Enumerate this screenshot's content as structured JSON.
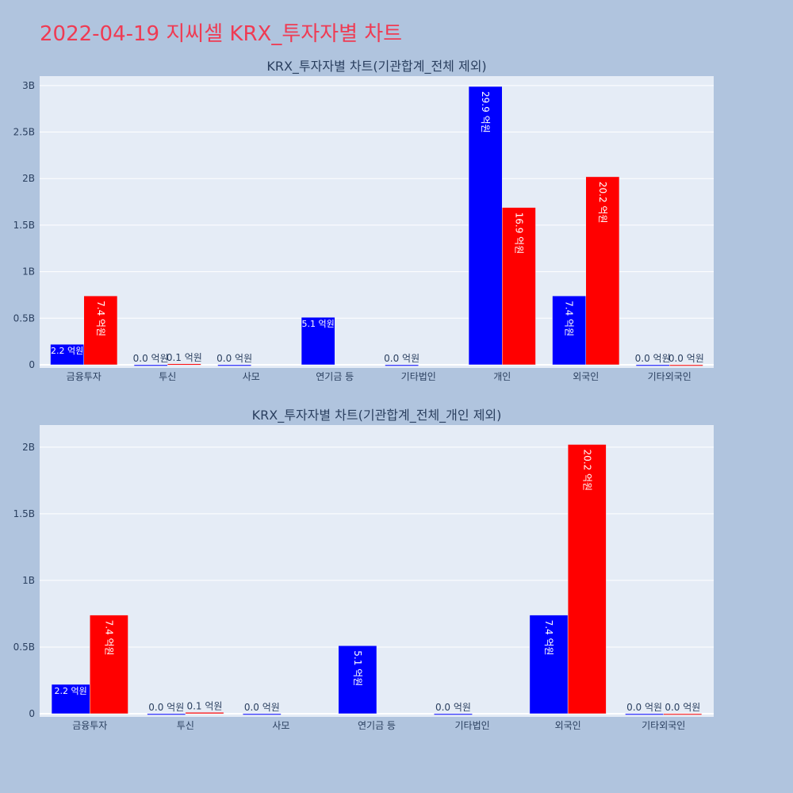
{
  "page": {
    "title": "2022-04-19 지씨셀 KRX_투자자별 차트",
    "title_color": "#ef3b53",
    "background": "#b0c4de",
    "plot_background": "#e5ecf6"
  },
  "chart_data": [
    {
      "type": "bar",
      "title": "KRX_투자자별 차트(기관합계_전체 제외)",
      "categories": [
        "금융투자",
        "투신",
        "사모",
        "연기금 등",
        "기타법인",
        "개인",
        "외국인",
        "기타외국인"
      ],
      "ylim": [
        0,
        3.05
      ],
      "yticks": [
        0,
        0.5,
        1,
        1.5,
        2,
        2.5,
        3
      ],
      "ytick_labels": [
        "0",
        "0.5B",
        "1B",
        "1.5B",
        "2B",
        "2.5B",
        "3B"
      ],
      "grid": true,
      "legend": "none",
      "series": [
        {
          "color": "#0000ff",
          "values": [
            0.22,
            0.0,
            0.0,
            0.51,
            0.0,
            2.99,
            0.74,
            0.0
          ],
          "labels": [
            "2.2 억원",
            "0.0 억원",
            "0.0 억원",
            "5.1 억원",
            "0.0 억원",
            "29.9 억원",
            "7.4 억원",
            "0.0 억원"
          ]
        },
        {
          "color": "#ff0000",
          "values": [
            0.74,
            0.01,
            null,
            null,
            null,
            1.69,
            2.02,
            0.0
          ],
          "labels": [
            "7.4 억원",
            "0.1 억원",
            null,
            null,
            null,
            "16.9 억원",
            "20.2 억원",
            "0.0 억원"
          ]
        }
      ]
    },
    {
      "type": "bar",
      "title": "KRX_투자자별 차트(기관합계_전체_개인 제외)",
      "categories": [
        "금융투자",
        "투신",
        "사모",
        "연기금 등",
        "기타법인",
        "외국인",
        "기타외국인"
      ],
      "ylim": [
        0,
        2.13
      ],
      "yticks": [
        0,
        0.5,
        1,
        1.5,
        2
      ],
      "ytick_labels": [
        "0",
        "0.5B",
        "1B",
        "1.5B",
        "2B"
      ],
      "grid": true,
      "legend": "none",
      "series": [
        {
          "color": "#0000ff",
          "values": [
            0.22,
            0.0,
            0.0,
            0.51,
            0.0,
            0.74,
            0.0
          ],
          "labels": [
            "2.2 억원",
            "0.0 억원",
            "0.0 억원",
            "5.1 억원",
            "0.0 억원",
            "7.4 억원",
            "0.0 억원"
          ]
        },
        {
          "color": "#ff0000",
          "values": [
            0.74,
            0.01,
            null,
            null,
            null,
            2.02,
            0.0
          ],
          "labels": [
            "7.4 억원",
            "0.1 억원",
            null,
            null,
            null,
            "20.2 억원",
            "0.0 억원"
          ]
        }
      ]
    }
  ]
}
